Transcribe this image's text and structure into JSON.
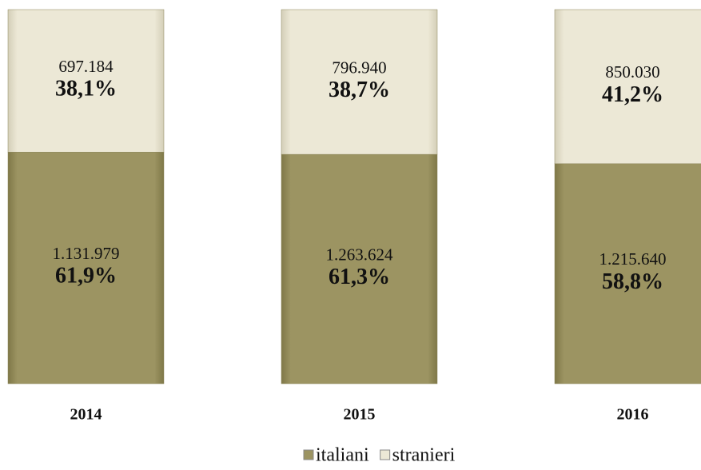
{
  "chart_data": {
    "type": "stacked_bar_100",
    "categories": [
      "2014",
      "2015",
      "2016"
    ],
    "ylim": [
      0,
      100
    ],
    "series": [
      {
        "name": "italiani",
        "color": "#9c9462",
        "values": [
          61.9,
          61.3,
          58.8
        ],
        "value_labels": [
          "61,9%",
          "61,3%",
          "58,8%"
        ],
        "counts": [
          1131979,
          1263624,
          1215640
        ],
        "count_labels": [
          "1.131.979",
          "1.263.624",
          "1.215.640"
        ]
      },
      {
        "name": "stranieri",
        "color": "#ece8d6",
        "values": [
          38.1,
          38.7,
          41.2
        ],
        "value_labels": [
          "38,1%",
          "38,7%",
          "41,2%"
        ],
        "counts": [
          697184,
          796940,
          850030
        ],
        "count_labels": [
          "697.184",
          "796.940",
          "850.030"
        ]
      }
    ],
    "legend": "bottom"
  }
}
